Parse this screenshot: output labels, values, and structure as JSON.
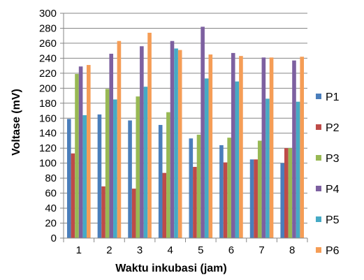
{
  "chart_data": {
    "type": "bar",
    "categories": [
      "1",
      "2",
      "3",
      "4",
      "5",
      "6",
      "7",
      "8"
    ],
    "series": [
      {
        "name": "P1",
        "color": "#4A7EBB",
        "values": [
          159,
          165,
          157,
          151,
          133,
          124,
          105,
          100
        ]
      },
      {
        "name": "P2",
        "color": "#BE4B48",
        "values": [
          113,
          69,
          66,
          87,
          95,
          101,
          105,
          120
        ]
      },
      {
        "name": "P3",
        "color": "#98B954",
        "values": [
          219,
          199,
          189,
          168,
          138,
          134,
          130,
          120
        ]
      },
      {
        "name": "P4",
        "color": "#7D60A0",
        "values": [
          229,
          246,
          256,
          263,
          282,
          247,
          241,
          237
        ]
      },
      {
        "name": "P5",
        "color": "#46AAC5",
        "values": [
          164,
          185,
          202,
          253,
          213,
          209,
          186,
          182
        ]
      },
      {
        "name": "P6",
        "color": "#F59D56",
        "values": [
          231,
          263,
          274,
          251,
          245,
          243,
          241,
          242
        ]
      }
    ],
    "xlabel": "Waktu inkubasi (jam)",
    "ylabel": "Voltase (mV)",
    "ylim": [
      0,
      300
    ],
    "yticks": [
      0,
      20,
      40,
      60,
      80,
      100,
      120,
      140,
      160,
      180,
      200,
      220,
      240,
      260,
      280,
      300
    ],
    "grid": true,
    "legend_position": "right"
  }
}
